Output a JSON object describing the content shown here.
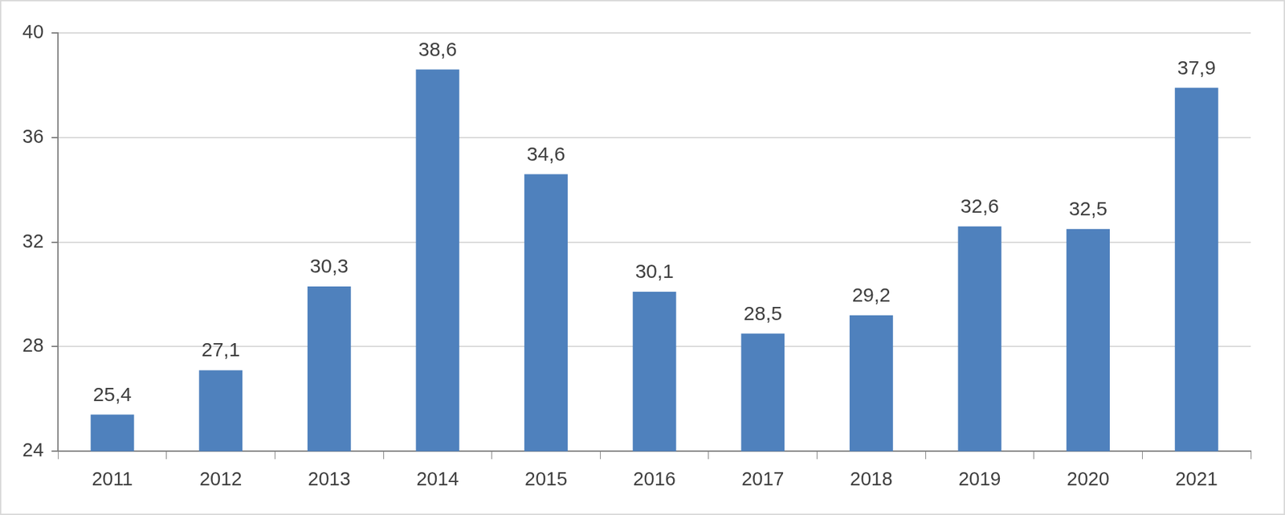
{
  "chart_data": {
    "type": "bar",
    "categories": [
      "2011",
      "2012",
      "2013",
      "2014",
      "2015",
      "2016",
      "2017",
      "2018",
      "2019",
      "2020",
      "2021"
    ],
    "values": [
      25.4,
      27.1,
      30.3,
      38.6,
      34.6,
      30.1,
      28.5,
      29.2,
      32.6,
      32.5,
      37.9
    ],
    "value_labels": [
      "25,4",
      "27,1",
      "30,3",
      "38,6",
      "34,6",
      "30,1",
      "28,5",
      "29,2",
      "32,6",
      "32,5",
      "37,9"
    ],
    "color": "#4f81bd",
    "ylim": [
      24,
      40
    ],
    "yticks": [
      24,
      28,
      32,
      36,
      40
    ],
    "grid": true,
    "data_labels": true
  }
}
